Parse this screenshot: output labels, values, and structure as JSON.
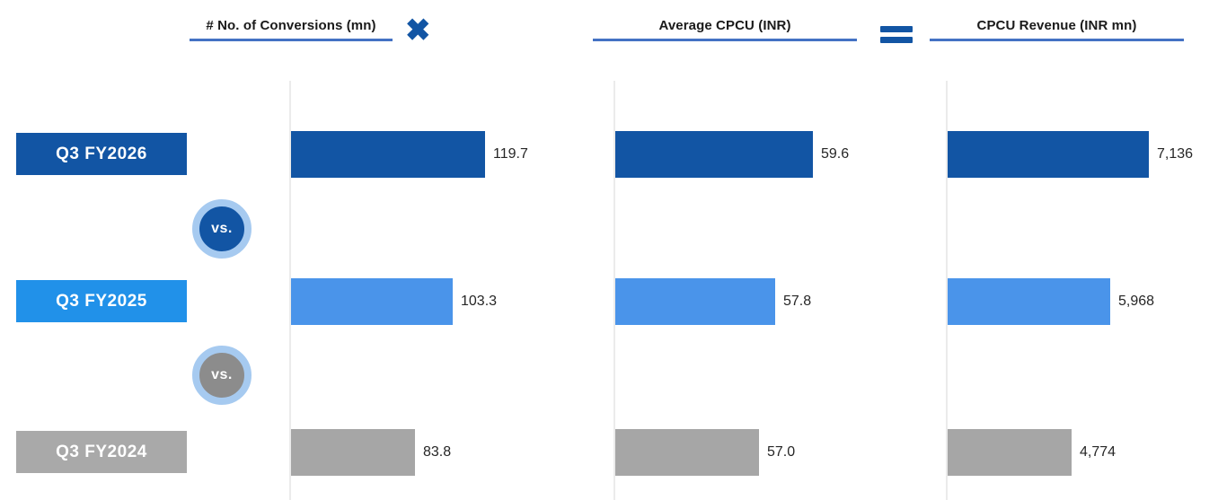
{
  "colors": {
    "header_text": "#1A1A1A",
    "accent_underline": "#4472C4",
    "operator_blue": "#1255A4",
    "axis_line": "#EBEBEB",
    "value_text": "#262626",
    "series": [
      {
        "name": "Q3 FY2026",
        "bar": "#1255A4",
        "label_bg": "#1255A4"
      },
      {
        "name": "Q3 FY2025",
        "bar": "#4A94EA",
        "label_bg": "#2191E9"
      },
      {
        "name": "Q3 FY2024",
        "bar": "#A6A6A6",
        "label_bg": "#A9A9A9"
      }
    ],
    "vs_badges": [
      {
        "bg": "#1255A4",
        "ring": "#A6CAF0"
      },
      {
        "bg": "#8C8C8C",
        "ring": "#A6CAF0"
      }
    ]
  },
  "operators": {
    "multiply": "✖",
    "equals": "="
  },
  "rows": [
    {
      "label": "Q3 FY2026"
    },
    {
      "label": "Q3 FY2025"
    },
    {
      "label": "Q3 FY2024"
    }
  ],
  "vs_badges": [
    {
      "label": "vs."
    },
    {
      "label": "vs."
    }
  ],
  "chart_data": [
    {
      "type": "bar",
      "orientation": "horizontal",
      "title": "# No. of Conversions (mn)",
      "categories": [
        "Q3 FY2026",
        "Q3 FY2025",
        "Q3 FY2024"
      ],
      "values": [
        119.7,
        103.3,
        83.8
      ],
      "labels": [
        "119.7",
        "103.3",
        "83.8"
      ],
      "axis_min": 20,
      "axis_max": 185,
      "grid": false,
      "legend": false
    },
    {
      "type": "bar",
      "orientation": "horizontal",
      "title": "Average CPCU (INR)",
      "categories": [
        "Q3 FY2026",
        "Q3 FY2025",
        "Q3 FY2024"
      ],
      "values": [
        59.6,
        57.8,
        57.0
      ],
      "labels": [
        "59.6",
        "57.8",
        "57.0"
      ],
      "axis_min": 50,
      "axis_max": 66,
      "grid": false,
      "legend": false
    },
    {
      "type": "bar",
      "orientation": "horizontal",
      "title": "CPCU Revenue (INR mn)",
      "categories": [
        "Q3 FY2026",
        "Q3 FY2025",
        "Q3 FY2024"
      ],
      "values": [
        7136,
        5968,
        4774
      ],
      "labels": [
        "7,136",
        "5,968",
        "4,774"
      ],
      "axis_min": 1000,
      "axis_max": 9200,
      "grid": false,
      "legend": false
    }
  ]
}
